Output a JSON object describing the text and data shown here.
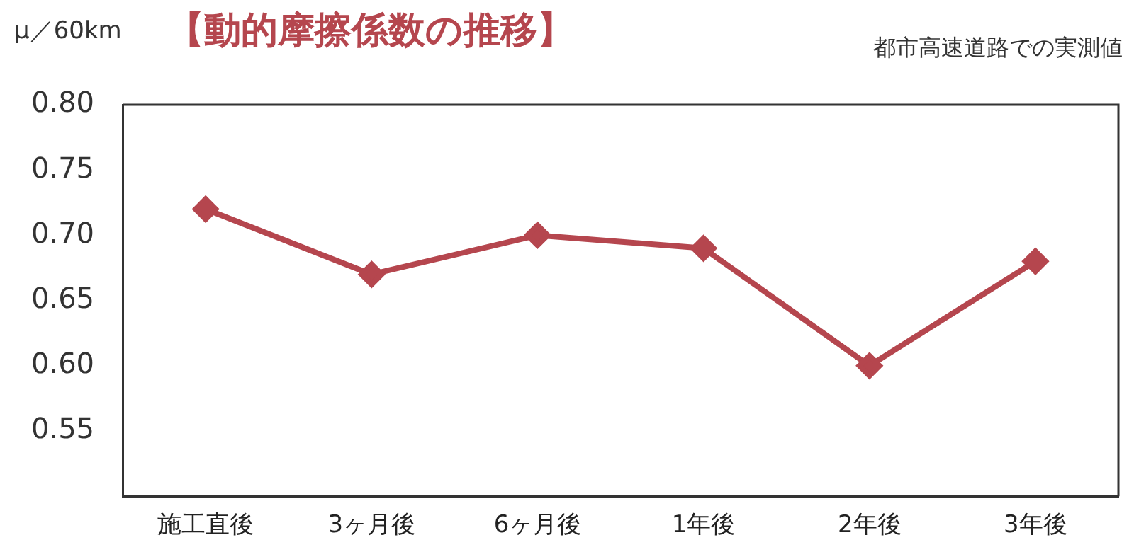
{
  "chart_data": {
    "type": "line",
    "title": "【動的摩擦係数の推移】",
    "subtitle": "都市高速道路での実測値",
    "ylabel": "μ／60km",
    "categories": [
      "施工直後",
      "3ヶ月後",
      "6ヶ月後",
      "1年後",
      "2年後",
      "3年後"
    ],
    "series": [
      {
        "color": "#b5464e",
        "values": [
          0.72,
          0.67,
          0.7,
          0.69,
          0.6,
          0.68
        ]
      }
    ],
    "ylim": [
      0.5,
      0.8
    ],
    "yticks": [
      0.55,
      {
        "value": 0.6,
        "label": "0.60"
      },
      0.65,
      {
        "value": 0.7,
        "label": "0.70"
      },
      0.75,
      {
        "value": 0.8,
        "label": "0.80"
      }
    ],
    "marker": "diamond",
    "line_style": "solid",
    "legend": false
  }
}
